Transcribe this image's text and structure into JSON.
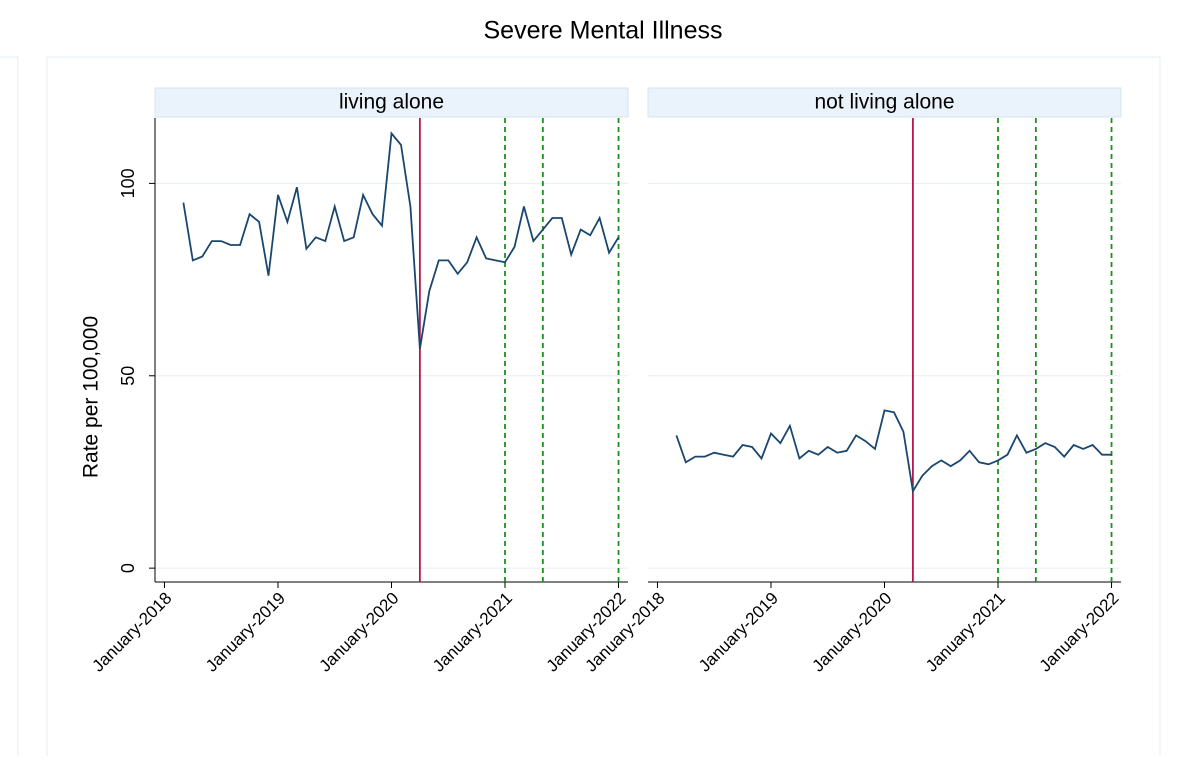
{
  "title": "Severe Mental Illness",
  "chart_data": [
    {
      "type": "line",
      "title": "living alone",
      "ylabel": "Rate per 100,000",
      "x": [
        "2018-03",
        "2018-04",
        "2018-05",
        "2018-06",
        "2018-07",
        "2018-08",
        "2018-09",
        "2018-10",
        "2018-11",
        "2018-12",
        "2019-01",
        "2019-02",
        "2019-03",
        "2019-04",
        "2019-05",
        "2019-06",
        "2019-07",
        "2019-08",
        "2019-09",
        "2019-10",
        "2019-11",
        "2019-12",
        "2020-01",
        "2020-02",
        "2020-03",
        "2020-04",
        "2020-05",
        "2020-06",
        "2020-07",
        "2020-08",
        "2020-09",
        "2020-10",
        "2020-11",
        "2020-12",
        "2021-01",
        "2021-02",
        "2021-03",
        "2021-04",
        "2021-05",
        "2021-06",
        "2021-07",
        "2021-08",
        "2021-09",
        "2021-10",
        "2021-11",
        "2021-12",
        "2022-01"
      ],
      "series": [
        {
          "color": "#1a476f",
          "values": [
            95,
            80,
            81,
            85,
            85,
            84,
            84,
            92,
            90,
            76,
            97,
            90,
            99,
            83,
            86,
            85,
            94,
            85,
            86,
            97,
            92,
            89,
            113,
            110,
            94,
            57,
            72,
            80,
            80,
            76.5,
            79.5,
            86,
            80.5,
            80,
            79.5,
            83.5,
            94,
            85,
            88,
            91,
            91,
            81.5,
            88,
            86.5,
            91,
            82,
            86
          ]
        }
      ],
      "vlines": [
        {
          "x": "2020-04",
          "color": "#b5174c",
          "dashed": false
        },
        {
          "x": "2021-01",
          "color": "#1d8f1d",
          "dashed": true
        },
        {
          "x": "2021-05",
          "color": "#1d8f1d",
          "dashed": true
        },
        {
          "x": "2022-01",
          "color": "#1d8f1d",
          "dashed": true
        }
      ],
      "xlim": [
        "2017-12",
        "2022-02"
      ],
      "xticks": [
        {
          "value": "2018-01",
          "label": "January-2018"
        },
        {
          "value": "2019-01",
          "label": "January-2019"
        },
        {
          "value": "2020-01",
          "label": "January-2020"
        },
        {
          "value": "2021-01",
          "label": "January-2021"
        },
        {
          "value": "2022-01",
          "label": "January-2022"
        }
      ],
      "ylim": [
        -3.6,
        117
      ],
      "yticks": [
        0,
        50,
        100
      ],
      "grid": true
    },
    {
      "type": "line",
      "title": "not living alone",
      "x": [
        "2018-03",
        "2018-04",
        "2018-05",
        "2018-06",
        "2018-07",
        "2018-08",
        "2018-09",
        "2018-10",
        "2018-11",
        "2018-12",
        "2019-01",
        "2019-02",
        "2019-03",
        "2019-04",
        "2019-05",
        "2019-06",
        "2019-07",
        "2019-08",
        "2019-09",
        "2019-10",
        "2019-11",
        "2019-12",
        "2020-01",
        "2020-02",
        "2020-03",
        "2020-04",
        "2020-05",
        "2020-06",
        "2020-07",
        "2020-08",
        "2020-09",
        "2020-10",
        "2020-11",
        "2020-12",
        "2021-01",
        "2021-02",
        "2021-03",
        "2021-04",
        "2021-05",
        "2021-06",
        "2021-07",
        "2021-08",
        "2021-09",
        "2021-10",
        "2021-11",
        "2021-12",
        "2022-01"
      ],
      "series": [
        {
          "color": "#1a476f",
          "values": [
            34.5,
            27.5,
            29,
            29,
            30,
            29.5,
            29,
            32,
            31.5,
            28.5,
            35,
            32.5,
            37,
            28.5,
            30.5,
            29.5,
            31.5,
            30,
            30.5,
            34.5,
            33,
            31,
            41,
            40.5,
            35.5,
            20,
            24,
            26.5,
            28,
            26.5,
            28,
            30.5,
            27.5,
            27,
            28,
            29.5,
            34.5,
            30,
            31,
            32.5,
            31.5,
            29,
            32,
            31,
            32,
            29.5,
            29.5
          ]
        }
      ],
      "vlines": [
        {
          "x": "2020-04",
          "color": "#b5174c",
          "dashed": false
        },
        {
          "x": "2021-01",
          "color": "#1d8f1d",
          "dashed": true
        },
        {
          "x": "2021-05",
          "color": "#1d8f1d",
          "dashed": true
        },
        {
          "x": "2022-01",
          "color": "#1d8f1d",
          "dashed": true
        }
      ],
      "xlim": [
        "2017-12",
        "2022-02"
      ],
      "xticks": [
        {
          "value": "2018-01",
          "label": "January-2018"
        },
        {
          "value": "2019-01",
          "label": "January-2019"
        },
        {
          "value": "2020-01",
          "label": "January-2020"
        },
        {
          "value": "2021-01",
          "label": "January-2021"
        },
        {
          "value": "2022-01",
          "label": "January-2022"
        }
      ],
      "ylim": [
        -3.6,
        117
      ],
      "yticks": [
        0,
        50,
        100
      ],
      "grid": true
    }
  ]
}
